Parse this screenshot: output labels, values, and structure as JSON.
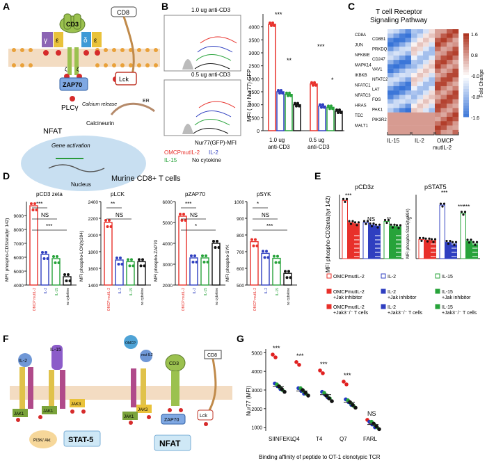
{
  "panels": {
    "A": {
      "letter": "A",
      "labels": [
        "CD8",
        "CD3",
        "γ",
        "ε",
        "δ",
        "ε",
        "ζ",
        "ζ",
        "Lck",
        "ZAP70",
        "PLCγ",
        "Calcium release",
        "ER",
        "Calcineurin",
        "NFAT",
        "Gene activation",
        "Nucleus"
      ]
    },
    "B": {
      "letter": "B",
      "hist_titles": [
        "1.0 ug anti-CD3",
        "0.5 ug anti-CD3"
      ],
      "xlabel": "Nur77(GFP)-MFI",
      "legend": [
        {
          "label": "OMCPmutIL-2",
          "color": "#e8302a"
        },
        {
          "label": "IL-2",
          "color": "#2f3fc0"
        },
        {
          "label": "IL-15",
          "color": "#27a33a"
        },
        {
          "label": "No cytokine",
          "color": "#111111"
        }
      ],
      "ylabel": "MFI ( for Nur77) GFP",
      "groups": [
        "1.0 ug\nanti-CD3",
        "0.5 ug\nanti-CD3"
      ],
      "sig": [
        "***",
        "**",
        "***",
        "*"
      ]
    },
    "C": {
      "letter": "C",
      "title_lines": [
        "T cell Receptor",
        "Signaling Pathway"
      ],
      "genes_left": [
        "CD8A",
        "JUN",
        "NFKBIE",
        "MAPK14",
        "IKBKB",
        "NFATC1",
        "NFATC3",
        "HRAS",
        "TEC",
        "MALT1"
      ],
      "genes_right": [
        "CD8B1",
        "PRKDQ",
        "CD247",
        "VAV1",
        "NFATC2",
        "LAT",
        "FOS",
        "PAK1",
        "PIK3R2"
      ],
      "colorbar_ticks": [
        "1.6",
        "0.8",
        "-0.0",
        "-0.8",
        "-1.6"
      ],
      "colorbar_label": "Fold Change",
      "groups": [
        "IL-15",
        "IL-2",
        "OMCP\nmutIL-2"
      ]
    },
    "D": {
      "letter": "D",
      "title": "Murine CD8+ T cells",
      "plots": [
        {
          "title": "pCD3 zeta",
          "ylabel": "MFI: phospho-CD3zeta(tyr 142)",
          "ticks": [
            "9000",
            "8000",
            "7000",
            "6000",
            "5000",
            "4000"
          ],
          "sig": [
            "***",
            "NS",
            "***"
          ]
        },
        {
          "title": "pLCK",
          "ylabel": "MFI phospho-LCK(ty394)",
          "ticks": [
            "2400",
            "2200",
            "2000",
            "1800",
            "1600",
            "1400"
          ],
          "sig": [
            "**",
            "NS"
          ]
        },
        {
          "title": "pZAP70",
          "ylabel": "MFI phospho-ZAP70",
          "ticks": [
            "6000",
            "5000",
            "4000",
            "3000",
            "2000"
          ],
          "sig": [
            "***",
            "NS",
            "*"
          ]
        },
        {
          "title": "pSYK",
          "ylabel": "MFI phospho-SYK",
          "ticks": [
            "1000",
            "900",
            "800",
            "700",
            "600",
            "500"
          ],
          "sig": [
            "*",
            "NS",
            "***"
          ]
        }
      ],
      "xcats": [
        "OMCP mutIL-2",
        "IL-2",
        "IL-15",
        "no cytokine"
      ]
    },
    "E": {
      "letter": "E",
      "titles": [
        "pCD3z",
        "pSTAT5"
      ],
      "ylabel_left": "MFI phospho-CD3zeta(tyr 142)",
      "ylabel_right": "MFI phospho-Stat5(tyr694)",
      "sig_left": [
        "***",
        "NS",
        "**",
        "**"
      ],
      "sig_right": [
        "***",
        "***",
        "***"
      ],
      "legend": [
        [
          "OMCPmutIL-2",
          "IL-2",
          "IL-15"
        ],
        [
          "OMCPmutIL-2\n+Jak inhibitor",
          "IL-2\n+Jak inhibitor",
          "IL-15\n+Jak inhibitor"
        ],
        [
          "OMCPmutIL-2\n+Jak3⁻/⁻ T cells",
          "IL-2\n+Jak3⁻/⁻ T cells",
          "IL-15\n+Jak3⁻/⁻ T cells"
        ]
      ]
    },
    "F": {
      "letter": "F",
      "labels": [
        "IL-2",
        "IL-15",
        "OMCP",
        "mut IL2",
        "CD3",
        "CD8",
        "JAK3",
        "JAK1",
        "JAK1",
        "JAK3",
        "JAK1",
        "ZAP70",
        "Lck",
        "PI3K/ Akt",
        "STAT-5",
        "NFAT"
      ]
    },
    "G": {
      "letter": "G",
      "ylabel": "Nur77 (MFI)",
      "xlabel": "Binding affinity of peptide to OT-1 clonotypic TCR",
      "categories": [
        "SIINFEKL",
        "Q4",
        "T4",
        "Q7",
        "FARL"
      ],
      "sig": [
        "***",
        "***",
        "***",
        "***",
        "NS"
      ],
      "ticks": [
        "5000",
        "4000",
        "3000",
        "2000",
        "1000"
      ]
    }
  },
  "chart_data": [
    {
      "type": "bar",
      "title": "",
      "ylabel": "MFI ( for Nur77) GFP",
      "categories": [
        "1.0 ug anti-CD3",
        "0.5 ug anti-CD3"
      ],
      "series": [
        {
          "name": "OMCPmutIL-2",
          "values": [
            4100,
            1800
          ]
        },
        {
          "name": "IL-2",
          "values": [
            1500,
            950
          ]
        },
        {
          "name": "IL-15",
          "values": [
            1400,
            900
          ]
        },
        {
          "name": "No cytokine",
          "values": [
            1000,
            750
          ]
        }
      ],
      "ylim": [
        0,
        4500
      ]
    },
    {
      "type": "bar",
      "title": "pCD3 zeta",
      "ylabel": "MFI: phospho-CD3zeta(tyr 142)",
      "categories": [
        "OMCP mutIL-2",
        "IL-2",
        "IL-15",
        "no cytokine"
      ],
      "values": [
        9700,
        6200,
        5900,
        4600
      ],
      "ylim": [
        4000,
        10000
      ]
    },
    {
      "type": "bar",
      "title": "pLCK",
      "ylabel": "MFI phospho-LCK(ty394)",
      "categories": [
        "OMCP mutIL-2",
        "IL-2",
        "IL-15",
        "no cytokine"
      ],
      "values": [
        2150,
        1700,
        1680,
        1680
      ],
      "ylim": [
        1400,
        2400
      ]
    },
    {
      "type": "bar",
      "title": "pZAP70",
      "ylabel": "MFI phospho-ZAP70",
      "categories": [
        "OMCP mutIL-2",
        "IL-2",
        "IL-15",
        "no cytokine"
      ],
      "values": [
        5300,
        3300,
        3300,
        4000
      ],
      "ylim": [
        2000,
        6000
      ]
    },
    {
      "type": "bar",
      "title": "pSYK",
      "ylabel": "MFI phospho-SYK",
      "categories": [
        "OMCP mutIL-2",
        "IL-2",
        "IL-15",
        "no cytokine"
      ],
      "values": [
        760,
        690,
        660,
        570
      ],
      "ylim": [
        500,
        1000
      ]
    },
    {
      "type": "bar",
      "title": "pCD3z",
      "ylabel": "MFI phospho-CD3zeta(tyr 142)",
      "categories": [
        "OMCPmutIL-2",
        "OMCPmutIL-2 +Jak inhibitor",
        "OMCPmutIL-2 +Jak3-/- T cells",
        "IL-2",
        "IL-2 +Jak inhibitor",
        "IL-2 +Jak3-/- T cells",
        "IL-15",
        "IL-15 +Jak inhibitor",
        "IL-15 +Jak3-/- T cells"
      ],
      "values": [
        1.0,
        0.62,
        0.6,
        0.62,
        0.58,
        0.56,
        0.64,
        0.56,
        0.55
      ],
      "ylim": [
        0,
        1.1
      ]
    },
    {
      "type": "bar",
      "title": "pSTAT5",
      "ylabel": "MFI phospho-Stat5(tyr694)",
      "categories": [
        "OMCPmutIL-2",
        "OMCPmutIL-2 +Jak inhibitor",
        "OMCPmutIL-2 +Jak3-/- T cells",
        "IL-2",
        "IL-2 +Jak inhibitor",
        "IL-2 +Jak3-/- T cells",
        "IL-15",
        "IL-15 +Jak inhibitor",
        "IL-15 +Jak3-/- T cells"
      ],
      "values": [
        0.33,
        0.32,
        0.31,
        0.92,
        0.28,
        0.26,
        0.78,
        0.3,
        0.26
      ],
      "ylim": [
        0,
        1.1
      ]
    },
    {
      "type": "scatter",
      "title": "",
      "ylabel": "Nur77 (MFI)",
      "xlabel": "Binding affinity of peptide to OT-1 clonotypic TCR",
      "categories": [
        "SIINFEKL",
        "Q4",
        "T4",
        "Q7",
        "FARL"
      ],
      "series": [
        {
          "name": "",
          "color": "#e02020",
          "values": [
            4750,
            4350,
            3900,
            3300,
            1250
          ]
        },
        {
          "name": "",
          "color": "#2336c7",
          "values": [
            3200,
            2950,
            2750,
            2350,
            1150
          ]
        },
        {
          "name": "",
          "color": "#27a33a",
          "values": [
            3150,
            2950,
            2700,
            2300,
            1150
          ]
        },
        {
          "name": "",
          "color": "#111111",
          "values": [
            3050,
            2850,
            2550,
            2200,
            1050
          ]
        }
      ],
      "ylim": [
        800,
        5200
      ]
    }
  ]
}
